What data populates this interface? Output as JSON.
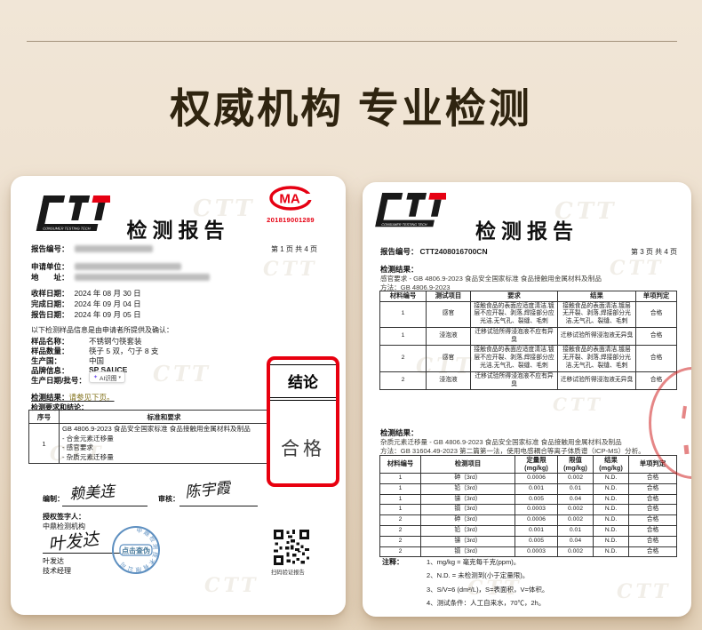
{
  "page": {
    "title": "权威机构 专业检测"
  },
  "watermark": "CTT",
  "colors": {
    "accent_red": "#e8000f",
    "cma_red": "#e60012",
    "stamp_blue": "#5d8fc0",
    "olive": "#84741f"
  },
  "left_report": {
    "logo_text": "CTT",
    "logo_subtext": "CONSUMER TESTING TECH",
    "cma": {
      "text": "MA",
      "number": "201819001289"
    },
    "title": "检测报告",
    "report_no_label": "报告编号：",
    "page_info": "第 1 页   共 4 页",
    "applicant_label": "申请单位：",
    "address_label": "地　　址：",
    "dates": [
      {
        "label": "收样日期：",
        "value": "2024 年 08 月 30 日"
      },
      {
        "label": "完成日期：",
        "value": "2024 年 09 月 04 日"
      },
      {
        "label": "报告日期：",
        "value": "2024 年 09 月 05 日"
      }
    ],
    "sample_note": "以下检测样品信息是由申请者所提供及确认：",
    "sample_fields": [
      {
        "label": "样品名称：",
        "value": "不锈钢勺筷套装"
      },
      {
        "label": "样品数量：",
        "value": "筷子 5 双，勺子 8 支"
      },
      {
        "label": "生产国：",
        "value": "中国"
      },
      {
        "label": "品牌信息：",
        "value": "SP SAUCE"
      },
      {
        "label": "生产日期/批号：",
        "value": ""
      }
    ],
    "ai_badge": {
      "icon": "✦",
      "label": "AI识图",
      "arrow": "▾"
    },
    "result_label": "检测结果：",
    "result_value": "请参见下页。",
    "table_caption": "检测要求和结论：",
    "table": {
      "col_no": "序号",
      "col_standard": "标准和要求",
      "row_no": "1",
      "standard": "GB 4806.9-2023 食品安全国家标准 食品接触用金属材料及制品",
      "items": [
        "- 合金元素迁移量",
        "- 感官要求",
        "- 杂质元素迁移量"
      ]
    },
    "conclusion_box": {
      "header": "结论",
      "value": "合格"
    },
    "signatures": {
      "prepared_label": "编制：",
      "prepared_name": "赖美连",
      "reviewed_label": "审核：",
      "reviewed_name": "陈宇霞",
      "authorized_label": "授权签字人：",
      "org": "中鼎检测机构",
      "signer_script": "叶发达",
      "signer_name": "叶发达",
      "signer_title": "技术经理"
    },
    "stamp": {
      "ring_text": "中鼎检测技术有限公司",
      "center_text": "点击查伪"
    },
    "qr_caption": "扫码验证报告"
  },
  "right_report": {
    "logo_text": "CTT",
    "logo_subtext": "CONSUMER TESTING TECH",
    "title": "检测报告",
    "report_no_label": "报告编号：",
    "report_no_value": "CTT2408016700CN",
    "page_info": "第 3 页   共 4 页",
    "section1": {
      "heading": "检测结果：",
      "standard_line": "感官要求  - GB 4806.9-2023  食品安全国家标准 食品接触用金属材料及制品",
      "method_line": "方法：GB 4806.9-2023",
      "table": {
        "headers": [
          "材料编号",
          "测试项目",
          "要求",
          "结果",
          "单项判定"
        ],
        "rows": [
          [
            "1",
            "感官",
            "接触食品的表面应适度清洁,镀层不应开裂、剥落,焊接部分应光洁,无气孔、裂缝、毛刺",
            "接触食品的表面清洁,镀层无开裂、剥落,焊接部分光洁,无气孔、裂缝、毛刺",
            "合格"
          ],
          [
            "1",
            "浸泡液",
            "迁移试验所得浸泡液不应有异臭",
            "迁移试验所得浸泡液无异臭",
            "合格"
          ],
          [
            "2",
            "感官",
            "接触食品的表面应适度清洁,镀层不应开裂、剥落,焊接部分应光洁,无气孔、裂缝、毛刺",
            "接触食品的表面清洁,镀层无开裂、剥落,焊接部分光洁,无气孔、裂缝、毛刺",
            "合格"
          ],
          [
            "2",
            "浸泡液",
            "迁移试验所得浸泡液不应有异臭",
            "迁移试验所得浸泡液无异臭",
            "合格"
          ]
        ]
      }
    },
    "section2": {
      "heading": "检测结果：",
      "standard_line": "杂质元素迁移量  - GB 4806.9-2023  食品安全国家标准 食品接触用金属材料及制品",
      "method_line": "方法：GB 31604.49-2023  第二篇第一法，使用电感耦合等离子体质谱（ICP-MS）分析。",
      "table": {
        "headers": [
          "材料编号",
          "检测项目",
          "定量限\n(mg/kg)",
          "限值\n(mg/kg)",
          "结果\n(mg/kg)",
          "单项判定"
        ],
        "rows": [
          [
            "1",
            "砷（3rd）",
            "0.0006",
            "0.002",
            "N.D.",
            "合格"
          ],
          [
            "1",
            "铅（3rd）",
            "0.001",
            "0.01",
            "N.D.",
            "合格"
          ],
          [
            "1",
            "锑（3rd）",
            "0.005",
            "0.04",
            "N.D.",
            "合格"
          ],
          [
            "1",
            "镉（3rd）",
            "0.0003",
            "0.002",
            "N.D.",
            "合格"
          ],
          [
            "2",
            "砷（3rd）",
            "0.0006",
            "0.002",
            "N.D.",
            "合格"
          ],
          [
            "2",
            "铅（3rd）",
            "0.001",
            "0.01",
            "N.D.",
            "合格"
          ],
          [
            "2",
            "锑（3rd）",
            "0.005",
            "0.04",
            "N.D.",
            "合格"
          ],
          [
            "2",
            "镉（3rd）",
            "0.0003",
            "0.002",
            "N.D.",
            "合格"
          ]
        ]
      }
    },
    "notes_label": "注释：",
    "notes": [
      "1、mg/kg = 毫克每千克(ppm)。",
      "2、N.D. = 未检测到(小于定量限)。",
      "3、S/V=6 (dm²/L)，S=表面积，V=体积。",
      "4、测试条件：人工自来水，70℃，2h。"
    ]
  }
}
